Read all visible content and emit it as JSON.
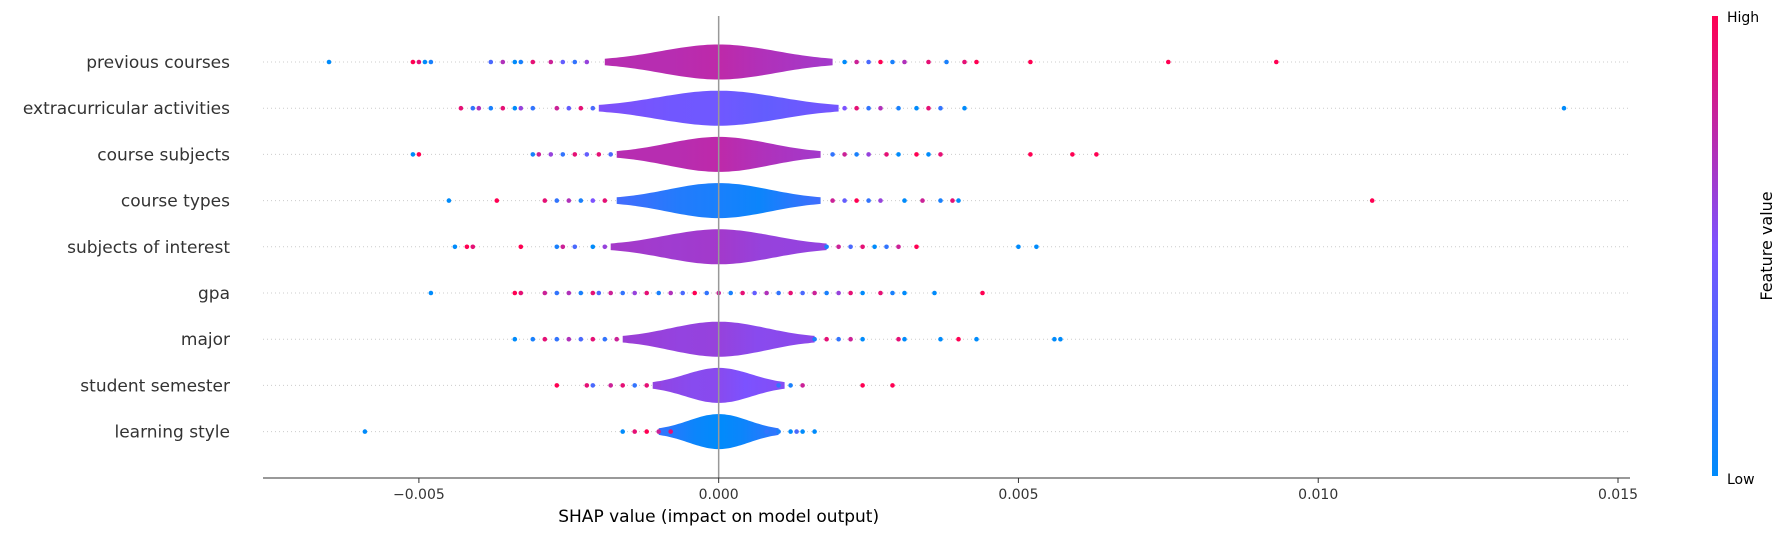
{
  "chart_data": {
    "type": "violin",
    "xlabel": "SHAP value (impact on model output)",
    "xlim": [
      -0.0076,
      0.0152
    ],
    "xticks": [
      {
        "value": -0.005,
        "label": "−0.005"
      },
      {
        "value": 0.0,
        "label": "0.000"
      },
      {
        "value": 0.005,
        "label": "0.005"
      },
      {
        "value": 0.01,
        "label": "0.010"
      },
      {
        "value": 0.015,
        "label": "0.015"
      }
    ],
    "grid": false,
    "colorbar": {
      "label": "Feature value",
      "high_label": "High",
      "low_label": "Low",
      "low_color": "#008bfb",
      "high_color": "#ff0052"
    },
    "features": [
      {
        "name": "previous courses",
        "spread": 0.0019,
        "center_value": 0.75,
        "dots": [
          [
            -0.0065,
            0
          ],
          [
            -0.0051,
            1
          ],
          [
            -0.005,
            0.9
          ],
          [
            -0.0049,
            0
          ],
          [
            -0.0048,
            0.1
          ],
          [
            -0.0038,
            0.3
          ],
          [
            -0.0036,
            0.7
          ],
          [
            -0.0034,
            0
          ],
          [
            -0.0033,
            0.1
          ],
          [
            -0.0031,
            0.9
          ],
          [
            -0.0028,
            0.8
          ],
          [
            -0.0026,
            0.4
          ],
          [
            -0.0024,
            0.2
          ],
          [
            -0.0022,
            0.6
          ],
          [
            0.0021,
            0
          ],
          [
            0.0023,
            0.8
          ],
          [
            0.0025,
            0.3
          ],
          [
            0.0027,
            1
          ],
          [
            0.0029,
            0.1
          ],
          [
            0.0031,
            0.7
          ],
          [
            0.0035,
            0.9
          ],
          [
            0.0038,
            0.1
          ],
          [
            0.0041,
            0.9
          ],
          [
            0.0043,
            1
          ],
          [
            0.0052,
            1
          ],
          [
            0.0075,
            1
          ],
          [
            0.0093,
            1
          ]
        ]
      },
      {
        "name": "extracurricular activities",
        "spread": 0.002,
        "center_value": 0.45,
        "dots": [
          [
            -0.0043,
            0.9
          ],
          [
            -0.0041,
            0.2
          ],
          [
            -0.004,
            0.7
          ],
          [
            -0.0038,
            0.1
          ],
          [
            -0.0036,
            0.9
          ],
          [
            -0.0034,
            0
          ],
          [
            -0.0033,
            0.6
          ],
          [
            -0.0031,
            0.2
          ],
          [
            -0.0027,
            0.8
          ],
          [
            -0.0025,
            0.4
          ],
          [
            -0.0023,
            0.9
          ],
          [
            -0.0021,
            0.3
          ],
          [
            0.0021,
            0.5
          ],
          [
            0.0023,
            0.9
          ],
          [
            0.0025,
            0.2
          ],
          [
            0.0027,
            0.7
          ],
          [
            0.003,
            0.1
          ],
          [
            0.0033,
            0
          ],
          [
            0.0035,
            0.9
          ],
          [
            0.0037,
            0.2
          ],
          [
            0.0041,
            0
          ],
          [
            0.0141,
            0
          ]
        ]
      },
      {
        "name": "course subjects",
        "spread": 0.0017,
        "center_value": 0.75,
        "dots": [
          [
            -0.0051,
            0
          ],
          [
            -0.005,
            1
          ],
          [
            -0.0031,
            0.1
          ],
          [
            -0.003,
            0.8
          ],
          [
            -0.0028,
            0.6
          ],
          [
            -0.0026,
            0.2
          ],
          [
            -0.0024,
            0.9
          ],
          [
            -0.0022,
            0.4
          ],
          [
            -0.002,
            0.9
          ],
          [
            -0.0018,
            0.3
          ],
          [
            0.0019,
            0.2
          ],
          [
            0.0021,
            0.8
          ],
          [
            0.0023,
            0.1
          ],
          [
            0.0025,
            0.6
          ],
          [
            0.0028,
            0.9
          ],
          [
            0.003,
            0
          ],
          [
            0.0033,
            1
          ],
          [
            0.0035,
            0
          ],
          [
            0.0037,
            0.9
          ],
          [
            0.0052,
            1
          ],
          [
            0.0059,
            1
          ],
          [
            0.0063,
            1
          ]
        ]
      },
      {
        "name": "course types",
        "spread": 0.0017,
        "center_value": 0.1,
        "dots": [
          [
            -0.0045,
            0
          ],
          [
            -0.0037,
            1
          ],
          [
            -0.0029,
            0.9
          ],
          [
            -0.0027,
            0.2
          ],
          [
            -0.0025,
            0.7
          ],
          [
            -0.0023,
            0.1
          ],
          [
            -0.0021,
            0.5
          ],
          [
            -0.0019,
            0.9
          ],
          [
            0.0019,
            0.8
          ],
          [
            0.0021,
            0.4
          ],
          [
            0.0023,
            1
          ],
          [
            0.0025,
            0.2
          ],
          [
            0.0027,
            0.6
          ],
          [
            0.0031,
            0
          ],
          [
            0.0034,
            0.8
          ],
          [
            0.0037,
            0.1
          ],
          [
            0.0039,
            0.9
          ],
          [
            0.004,
            0
          ],
          [
            0.0109,
            1
          ]
        ]
      },
      {
        "name": "subjects of interest",
        "spread": 0.0018,
        "center_value": 0.65,
        "dots": [
          [
            -0.0044,
            0
          ],
          [
            -0.0042,
            1
          ],
          [
            -0.0041,
            0.9
          ],
          [
            -0.0033,
            1
          ],
          [
            -0.0027,
            0.1
          ],
          [
            -0.0026,
            0.8
          ],
          [
            -0.0024,
            0.3
          ],
          [
            -0.0021,
            0
          ],
          [
            -0.0019,
            0.6
          ],
          [
            0.0018,
            0.1
          ],
          [
            0.002,
            0.8
          ],
          [
            0.0022,
            0.3
          ],
          [
            0.0024,
            0.9
          ],
          [
            0.0026,
            0
          ],
          [
            0.0028,
            0.2
          ],
          [
            0.003,
            0.8
          ],
          [
            0.0033,
            1
          ],
          [
            0.005,
            0
          ],
          [
            0.0053,
            0
          ]
        ]
      },
      {
        "name": "gpa",
        "spread": 0.0001,
        "center_value": 0.5,
        "dots": [
          [
            -0.0048,
            0
          ],
          [
            -0.0034,
            1
          ],
          [
            -0.0033,
            0.9
          ],
          [
            -0.0029,
            0.8
          ],
          [
            -0.0027,
            0.2
          ],
          [
            -0.0025,
            0.7
          ],
          [
            -0.0023,
            0.1
          ],
          [
            -0.0021,
            0.9
          ],
          [
            -0.002,
            0.3
          ],
          [
            -0.0018,
            0.8
          ],
          [
            -0.0016,
            0.2
          ],
          [
            -0.0014,
            0.6
          ],
          [
            -0.0012,
            0.9
          ],
          [
            -0.001,
            0.1
          ],
          [
            -0.0008,
            0.7
          ],
          [
            -0.0006,
            0.3
          ],
          [
            -0.0004,
            1
          ],
          [
            -0.0002,
            0.2
          ],
          [
            0.0,
            0.8
          ],
          [
            0.0002,
            0.1
          ],
          [
            0.0004,
            0.9
          ],
          [
            0.0006,
            0.4
          ],
          [
            0.0008,
            0.7
          ],
          [
            0.001,
            0.2
          ],
          [
            0.0012,
            0.9
          ],
          [
            0.0014,
            0.3
          ],
          [
            0.0016,
            0.8
          ],
          [
            0.0018,
            0.1
          ],
          [
            0.002,
            0.6
          ],
          [
            0.0022,
            0.9
          ],
          [
            0.0024,
            0
          ],
          [
            0.0027,
            0.9
          ],
          [
            0.0029,
            0.1
          ],
          [
            0.0031,
            0
          ],
          [
            0.0036,
            0
          ],
          [
            0.0044,
            1
          ]
        ]
      },
      {
        "name": "major",
        "spread": 0.0016,
        "center_value": 0.6,
        "dots": [
          [
            -0.0034,
            0
          ],
          [
            -0.0031,
            0.1
          ],
          [
            -0.0029,
            0.9
          ],
          [
            -0.0027,
            0.2
          ],
          [
            -0.0025,
            0.7
          ],
          [
            -0.0023,
            0.3
          ],
          [
            -0.0021,
            0.9
          ],
          [
            -0.0019,
            0.2
          ],
          [
            -0.0017,
            0.8
          ],
          [
            0.0016,
            0.1
          ],
          [
            0.0018,
            0.9
          ],
          [
            0.002,
            0.2
          ],
          [
            0.0022,
            0.8
          ],
          [
            0.0024,
            0
          ],
          [
            0.003,
            0.9
          ],
          [
            0.0031,
            0
          ],
          [
            0.0037,
            0
          ],
          [
            0.004,
            1
          ],
          [
            0.0043,
            0
          ],
          [
            0.0056,
            0
          ],
          [
            0.0057,
            0
          ]
        ]
      },
      {
        "name": "student semester",
        "spread": 0.0011,
        "center_value": 0.55,
        "dots": [
          [
            -0.0027,
            1
          ],
          [
            -0.0022,
            0.9
          ],
          [
            -0.0021,
            0.3
          ],
          [
            -0.0018,
            0.8
          ],
          [
            -0.0016,
            0.9
          ],
          [
            -0.0014,
            0.2
          ],
          [
            -0.0012,
            0.9
          ],
          [
            -0.001,
            0.6
          ],
          [
            0.001,
            0.2
          ],
          [
            0.0012,
            0.1
          ],
          [
            0.0014,
            0.8
          ],
          [
            0.0024,
            1
          ],
          [
            0.0029,
            1
          ]
        ]
      },
      {
        "name": "learning style",
        "spread": 0.001,
        "center_value": 0.0,
        "dots": [
          [
            -0.0059,
            0
          ],
          [
            -0.0016,
            0
          ],
          [
            -0.0014,
            0.9
          ],
          [
            -0.0012,
            1
          ],
          [
            -0.001,
            0.8
          ],
          [
            -0.0008,
            0.9
          ],
          [
            0.0008,
            0.2
          ],
          [
            0.001,
            0.1
          ],
          [
            0.0012,
            0
          ],
          [
            0.0013,
            0.3
          ],
          [
            0.0014,
            0
          ],
          [
            0.0016,
            0
          ]
        ]
      }
    ]
  }
}
